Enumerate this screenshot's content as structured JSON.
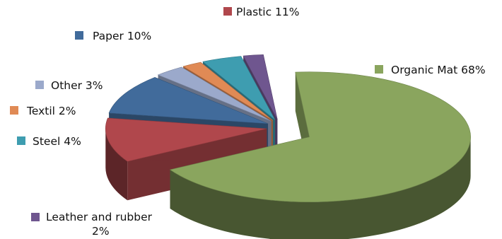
{
  "chart_data": {
    "type": "pie",
    "style": "3d-exploded",
    "legend_placement": "callouts-around-pie",
    "unit": "%",
    "slices": [
      {
        "name": "Organic Mat",
        "value": 68,
        "label": "Organic Mat 68%",
        "color": "#8aa55e"
      },
      {
        "name": "Plastic",
        "value": 11,
        "label": "Plastic 11%",
        "color": "#b0474c"
      },
      {
        "name": "Paper",
        "value": 10,
        "label": "Paper 10%",
        "color": "#416b9b"
      },
      {
        "name": "Other",
        "value": 3,
        "label": "Other 3%",
        "color": "#9ba9cb"
      },
      {
        "name": "Textil",
        "value": 2,
        "label": "Textil 2%",
        "color": "#e08a55"
      },
      {
        "name": "Steel",
        "value": 4,
        "label": "Steel 4%",
        "color": "#3e9db0"
      },
      {
        "name": "Leather and rubber",
        "value": 2,
        "label_lines": [
          "Leather and rubber",
          "2%"
        ],
        "color": "#6f568f"
      }
    ]
  }
}
